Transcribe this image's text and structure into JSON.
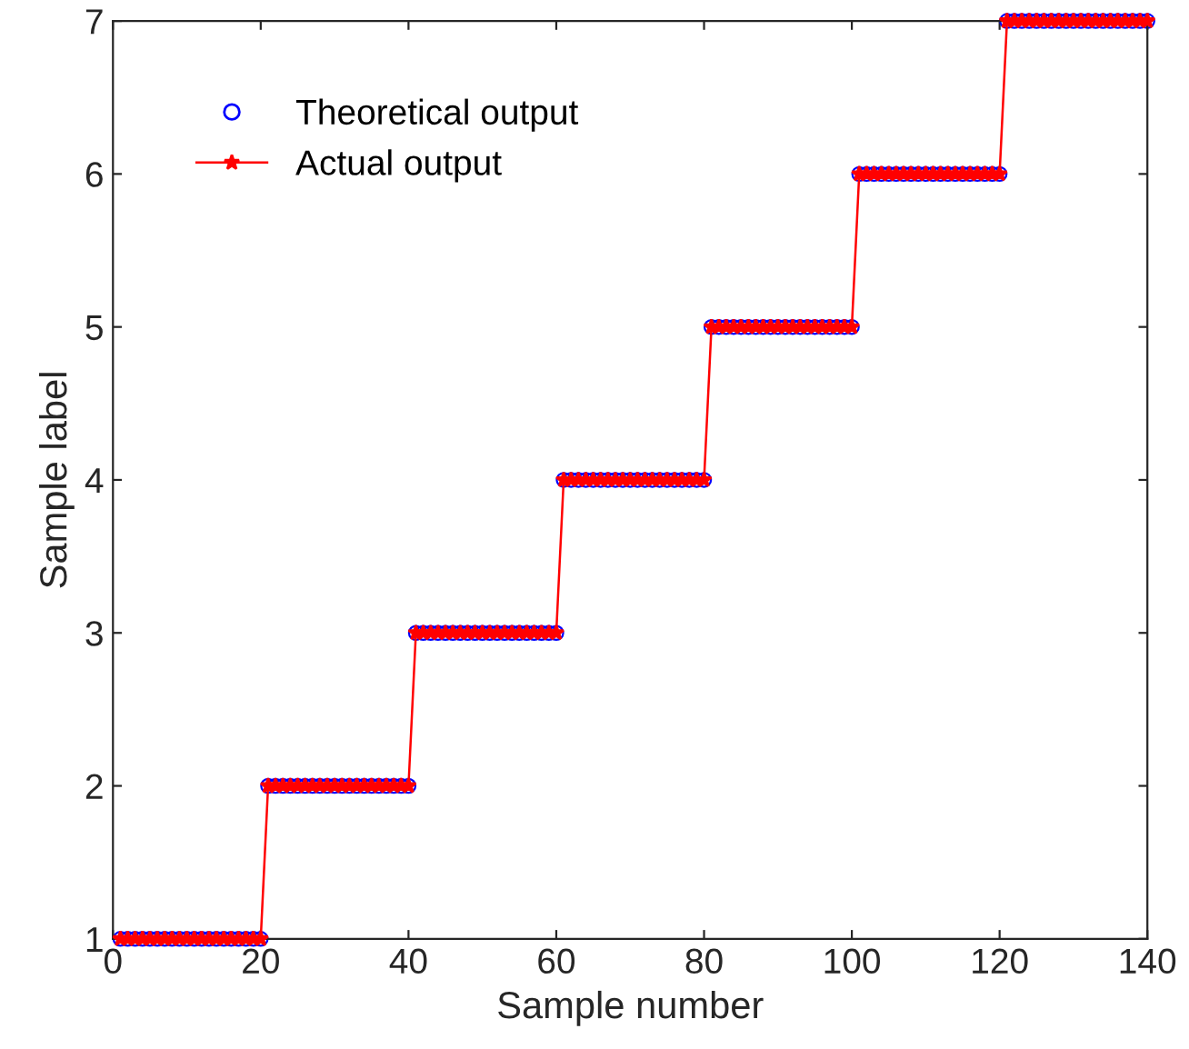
{
  "chart_data": {
    "type": "line",
    "xlabel": "Sample number",
    "ylabel": "Sample label",
    "x": [
      1,
      2,
      3,
      4,
      5,
      6,
      7,
      8,
      9,
      10,
      11,
      12,
      13,
      14,
      15,
      16,
      17,
      18,
      19,
      20,
      21,
      22,
      23,
      24,
      25,
      26,
      27,
      28,
      29,
      30,
      31,
      32,
      33,
      34,
      35,
      36,
      37,
      38,
      39,
      40,
      41,
      42,
      43,
      44,
      45,
      46,
      47,
      48,
      49,
      50,
      51,
      52,
      53,
      54,
      55,
      56,
      57,
      58,
      59,
      60,
      61,
      62,
      63,
      64,
      65,
      66,
      67,
      68,
      69,
      70,
      71,
      72,
      73,
      74,
      75,
      76,
      77,
      78,
      79,
      80,
      81,
      82,
      83,
      84,
      85,
      86,
      87,
      88,
      89,
      90,
      91,
      92,
      93,
      94,
      95,
      96,
      97,
      98,
      99,
      100,
      101,
      102,
      103,
      104,
      105,
      106,
      107,
      108,
      109,
      110,
      111,
      112,
      113,
      114,
      115,
      116,
      117,
      118,
      119,
      120,
      121,
      122,
      123,
      124,
      125,
      126,
      127,
      128,
      129,
      130,
      131,
      132,
      133,
      134,
      135,
      136,
      137,
      138,
      139,
      140
    ],
    "series": [
      {
        "name": "Theoretical output",
        "type": "scatter",
        "marker": "circle",
        "color": "#0000ff",
        "values": [
          1,
          1,
          1,
          1,
          1,
          1,
          1,
          1,
          1,
          1,
          1,
          1,
          1,
          1,
          1,
          1,
          1,
          1,
          1,
          1,
          2,
          2,
          2,
          2,
          2,
          2,
          2,
          2,
          2,
          2,
          2,
          2,
          2,
          2,
          2,
          2,
          2,
          2,
          2,
          2,
          3,
          3,
          3,
          3,
          3,
          3,
          3,
          3,
          3,
          3,
          3,
          3,
          3,
          3,
          3,
          3,
          3,
          3,
          3,
          3,
          4,
          4,
          4,
          4,
          4,
          4,
          4,
          4,
          4,
          4,
          4,
          4,
          4,
          4,
          4,
          4,
          4,
          4,
          4,
          4,
          5,
          5,
          5,
          5,
          5,
          5,
          5,
          5,
          5,
          5,
          5,
          5,
          5,
          5,
          5,
          5,
          5,
          5,
          5,
          5,
          6,
          6,
          6,
          6,
          6,
          6,
          6,
          6,
          6,
          6,
          6,
          6,
          6,
          6,
          6,
          6,
          6,
          6,
          6,
          6,
          7,
          7,
          7,
          7,
          7,
          7,
          7,
          7,
          7,
          7,
          7,
          7,
          7,
          7,
          7,
          7,
          7,
          7,
          7,
          7
        ]
      },
      {
        "name": "Actual output",
        "marker": "star",
        "line_style": "solid",
        "color": "#ff0000",
        "values": [
          1,
          1,
          1,
          1,
          1,
          1,
          1,
          1,
          1,
          1,
          1,
          1,
          1,
          1,
          1,
          1,
          1,
          1,
          1,
          1,
          2,
          2,
          2,
          2,
          2,
          2,
          2,
          2,
          2,
          2,
          2,
          2,
          2,
          2,
          2,
          2,
          2,
          2,
          2,
          2,
          3,
          3,
          3,
          3,
          3,
          3,
          3,
          3,
          3,
          3,
          3,
          3,
          3,
          3,
          3,
          3,
          3,
          3,
          3,
          3,
          4,
          4,
          4,
          4,
          4,
          4,
          4,
          4,
          4,
          4,
          4,
          4,
          4,
          4,
          4,
          4,
          4,
          4,
          4,
          4,
          5,
          5,
          5,
          5,
          5,
          5,
          5,
          5,
          5,
          5,
          5,
          5,
          5,
          5,
          5,
          5,
          5,
          5,
          5,
          5,
          6,
          6,
          6,
          6,
          6,
          6,
          6,
          6,
          6,
          6,
          6,
          6,
          6,
          6,
          6,
          6,
          6,
          6,
          6,
          6,
          7,
          7,
          7,
          7,
          7,
          7,
          7,
          7,
          7,
          7,
          7,
          7,
          7,
          7,
          7,
          7,
          7,
          7,
          7,
          7
        ]
      }
    ],
    "xlim": [
      0,
      140
    ],
    "xticks": [
      0,
      20,
      40,
      60,
      80,
      100,
      120,
      140
    ],
    "ylim": [
      1,
      7
    ],
    "yticks": [
      1,
      2,
      3,
      4,
      5,
      6,
      7
    ],
    "grid": false,
    "legend": "top left"
  }
}
